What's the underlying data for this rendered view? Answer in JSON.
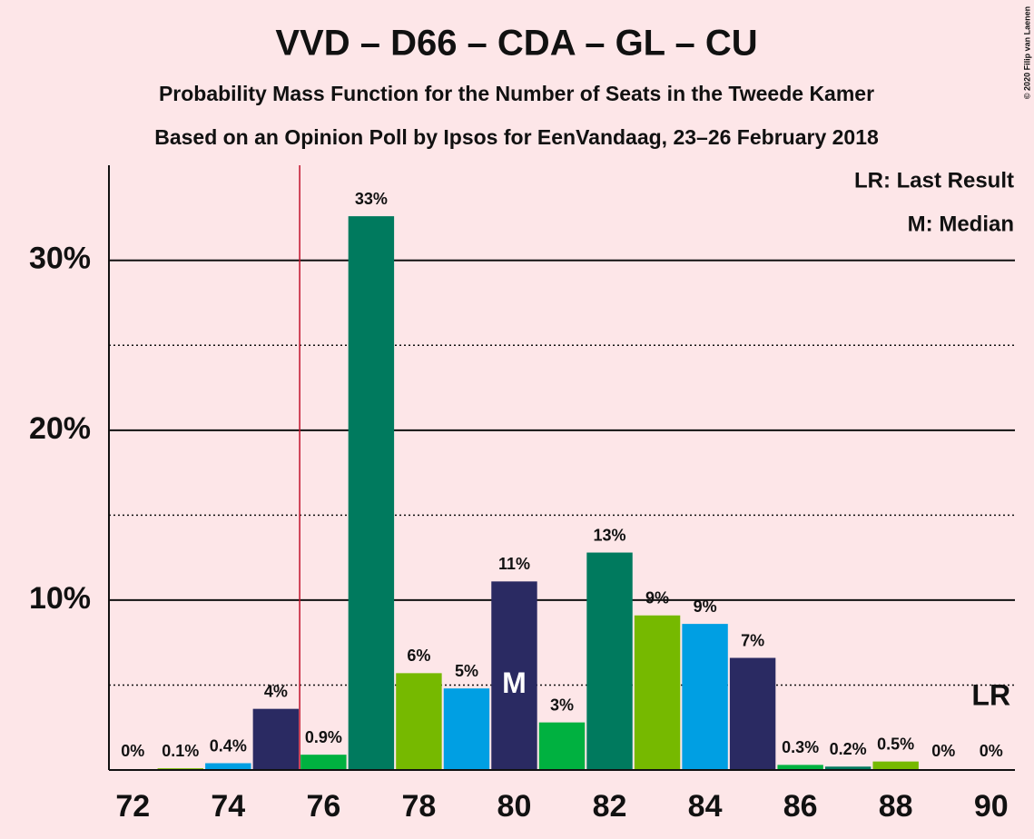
{
  "chart_data": {
    "type": "bar",
    "title": "VVD – D66 – CDA – GL – CU",
    "subtitles": [
      "Probability Mass Function for the Number of Seats in the Tweede Kamer",
      "Based on an Opinion Poll by Ipsos for EenVandaag, 23–26 February 2018"
    ],
    "credit": "© 2020 Filip van Laenen",
    "x": [
      72,
      73,
      74,
      75,
      76,
      77,
      78,
      79,
      80,
      81,
      82,
      83,
      84,
      85,
      86,
      87,
      88,
      89,
      90
    ],
    "values": [
      0,
      0.1,
      0.4,
      3.6,
      0.9,
      32.6,
      5.7,
      4.8,
      11.1,
      2.8,
      12.8,
      9.1,
      8.6,
      6.6,
      0.3,
      0.2,
      0.5,
      0,
      0
    ],
    "value_labels": [
      "0%",
      "0.1%",
      "0.4%",
      "4%",
      "0.9%",
      "33%",
      "6%",
      "5%",
      "11%",
      "3%",
      "13%",
      "9%",
      "9%",
      "7%",
      "0.3%",
      "0.2%",
      "0.5%",
      "0%",
      "0%"
    ],
    "colors": [
      "#007a5e",
      "#76b900",
      "#009fe3",
      "#2a2a62",
      "#00b140",
      "#007a5e",
      "#76b900",
      "#009fe3",
      "#2a2a62",
      "#00b140",
      "#007a5e",
      "#76b900",
      "#009fe3",
      "#2a2a62",
      "#00b140",
      "#007a5e",
      "#76b900",
      "#009fe3",
      "#2a2a62"
    ],
    "xlim": [
      71.5,
      90.5
    ],
    "xticks": [
      72,
      74,
      76,
      78,
      80,
      82,
      84,
      86,
      88,
      90
    ],
    "ylim": [
      0,
      35.6
    ],
    "yticks": [
      {
        "value": 10,
        "label": "10%"
      },
      {
        "value": 20,
        "label": "20%"
      },
      {
        "value": 30,
        "label": "30%"
      }
    ],
    "minor_grid": [
      5,
      15,
      25
    ],
    "majority": 76,
    "median": {
      "value": 80,
      "label": "M"
    },
    "last_result": {
      "value": 90,
      "label": "LR"
    },
    "legend": [
      "LR: Last Result",
      "M: Median"
    ]
  }
}
